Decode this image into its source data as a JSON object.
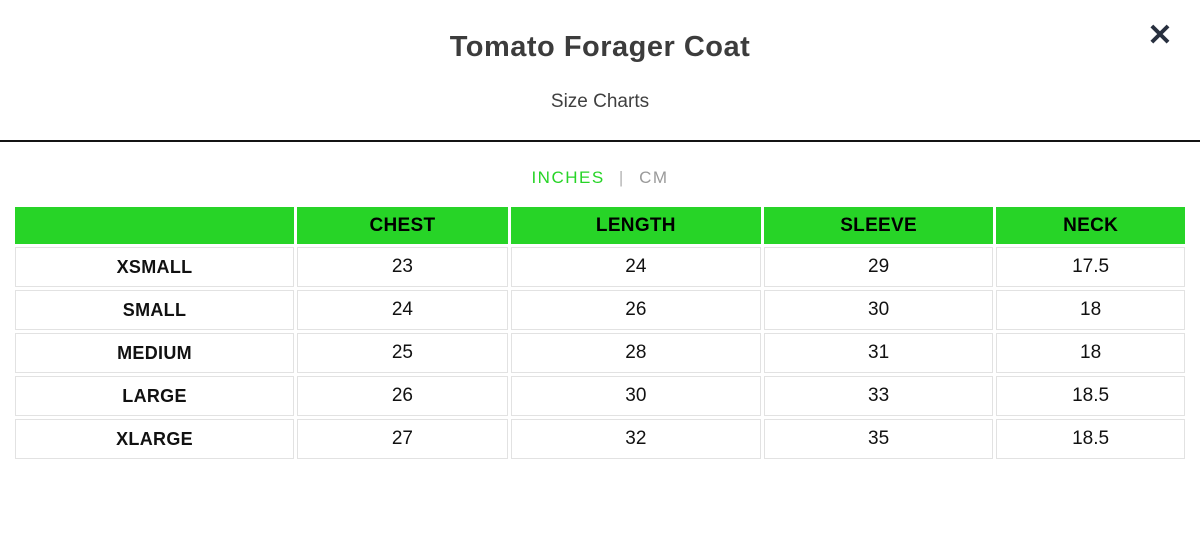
{
  "modal": {
    "title": "Tomato Forager Coat",
    "subtitle": "Size Charts",
    "close_glyph": "✕"
  },
  "unit_toggle": {
    "inches_label": "INCHES",
    "separator": "|",
    "cm_label": "CM",
    "selected": "INCHES"
  },
  "size_table": {
    "columns": [
      "",
      "CHEST",
      "LENGTH",
      "SLEEVE",
      "NECK"
    ],
    "rows": [
      {
        "size": "XSMALL",
        "values": [
          "23",
          "24",
          "29",
          "17.5"
        ]
      },
      {
        "size": "SMALL",
        "values": [
          "24",
          "26",
          "30",
          "18"
        ]
      },
      {
        "size": "MEDIUM",
        "values": [
          "25",
          "28",
          "31",
          "18"
        ]
      },
      {
        "size": "LARGE",
        "values": [
          "26",
          "30",
          "33",
          "18.5"
        ]
      },
      {
        "size": "XLARGE",
        "values": [
          "27",
          "32",
          "35",
          "18.5"
        ]
      }
    ]
  },
  "colors": {
    "accent-green": "#27d427",
    "title-color": "#3c3c3c",
    "muted": "#9a9a9a",
    "divider": "#141414",
    "cell-border": "#e2e2e2",
    "close": "#28303f"
  }
}
